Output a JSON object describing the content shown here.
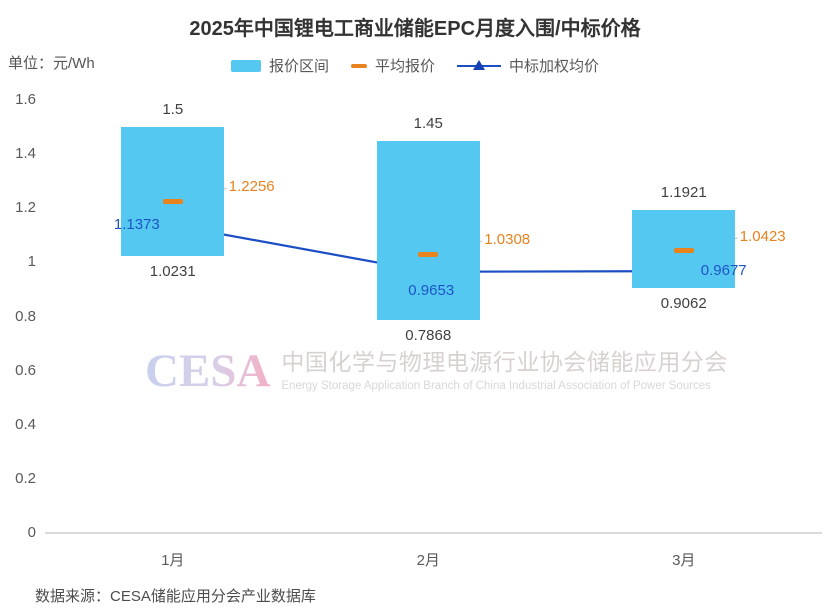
{
  "title": "2025年中国锂电工商业储能EPC月度入围/中标价格",
  "unit_label": "单位：元/Wh",
  "legend": {
    "range_label": "报价区间",
    "avg_label": "平均报价",
    "win_label": "中标加权均价"
  },
  "watermark": {
    "logo": "CESA",
    "cn": "中国化学与物理电源行业协会储能应用分会",
    "en": "Energy Storage Application Branch of China Industrial Association of Power Sources"
  },
  "source": "数据来源：CESA储能应用分会产业数据库",
  "colors": {
    "bar": "#54C8F1",
    "avg_marker": "#E8831D",
    "avg_text": "#E8821E",
    "win_line": "#1B4EC4",
    "win_triangle": "#1641B4",
    "win_text": "#1E55C6",
    "value_text": "#404040",
    "axis_text": "#595959",
    "leader_line": "#C2C2C2",
    "axis_line": "#DADADA"
  },
  "chart_data": {
    "type": "bar",
    "subtype": "floating-range-bars-with-markers-and-line",
    "categories": [
      "1月",
      "2月",
      "3月"
    ],
    "series": [
      {
        "name": "报价区间",
        "type": "floating-bar",
        "high": [
          1.5,
          1.45,
          1.1921
        ],
        "low": [
          1.0231,
          0.7868,
          0.9062
        ]
      },
      {
        "name": "平均报价",
        "type": "dash-marker",
        "values": [
          1.2256,
          1.0308,
          1.0423
        ]
      },
      {
        "name": "中标加权均价",
        "type": "line-triangle",
        "values": [
          1.1373,
          0.9653,
          0.9677
        ]
      }
    ],
    "ylim": [
      0,
      1.6
    ],
    "yticks": [
      1.6,
      1.4,
      1.2,
      1,
      0.8,
      0.6,
      0.4,
      0.2,
      0
    ],
    "grid": false,
    "legend_position": "top-center",
    "win_label_pos": [
      "left",
      "below",
      "right"
    ]
  }
}
